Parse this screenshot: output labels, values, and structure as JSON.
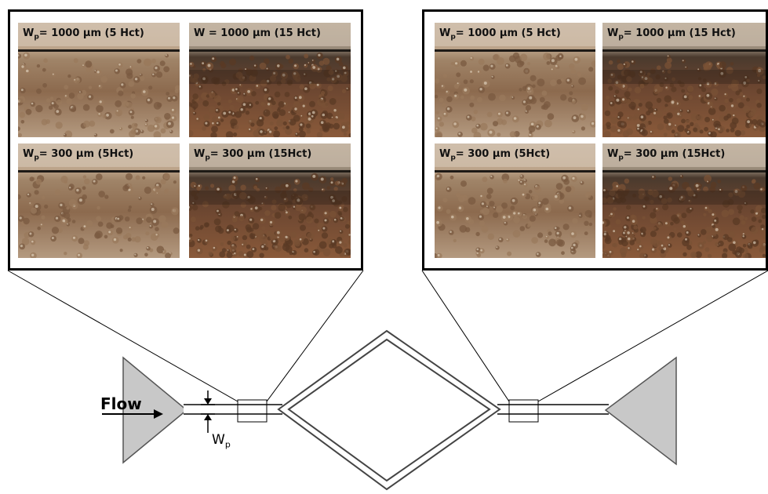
{
  "panels": [
    {
      "id": "left",
      "images": [
        {
          "pre": "W",
          "sub": "p",
          "text": "= 1000 μm (5 Hct)",
          "variant": "light-5"
        },
        {
          "pre": "W",
          "sub": "",
          "text": " = 1000 μm (15 Hct)",
          "variant": "dense-15"
        },
        {
          "pre": "W",
          "sub": "p",
          "text": "= 300 μm (5Hct)",
          "variant": "light-5"
        },
        {
          "pre": "W",
          "sub": "p",
          "text": "= 300 μm (15Hct)",
          "variant": "dense-15"
        }
      ]
    },
    {
      "id": "right",
      "images": [
        {
          "pre": "W",
          "sub": "p",
          "text": "= 1000 μm (5 Hct)",
          "variant": "light-5"
        },
        {
          "pre": "W",
          "sub": "p",
          "text": "= 1000 μm (15 Hct)",
          "variant": "dense-15"
        },
        {
          "pre": "W",
          "sub": "p",
          "text": "= 300 μm (5Hct)",
          "variant": "light-5"
        },
        {
          "pre": "W",
          "sub": "p",
          "text": "= 300 μm (15Hct)",
          "variant": "dense-15"
        }
      ]
    }
  ],
  "schematic": {
    "flow_label": "Flow",
    "width_label": {
      "pre": "W",
      "sub": "p"
    }
  },
  "colors": {
    "background": "#ffffff",
    "micro_bg": "#b5967a",
    "micro_dark": "#5a3a22",
    "reservoir_fill": "#c8c8c8",
    "outline": "#000000"
  }
}
